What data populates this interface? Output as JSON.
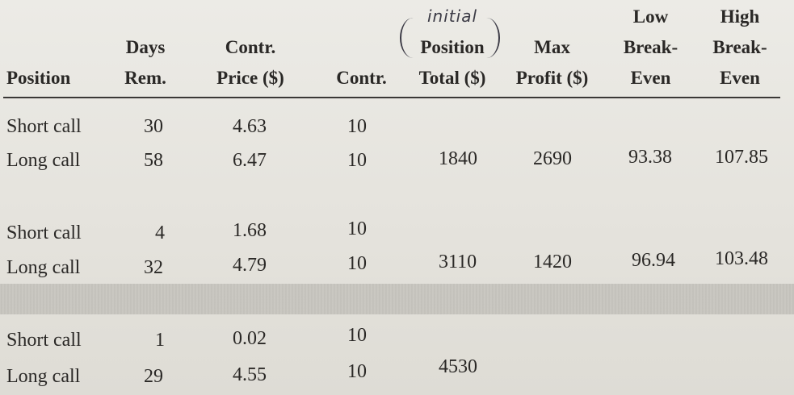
{
  "handwritten_note": "initial",
  "headers": {
    "position": "Position",
    "days_rem": [
      "Days",
      "Rem."
    ],
    "contr_price": [
      "Contr.",
      "Price ($)"
    ],
    "contr": "Contr.",
    "position_total": [
      "Position",
      "Total ($)"
    ],
    "max_profit": [
      "Max",
      "Profit ($)"
    ],
    "low_breakeven": [
      "Low",
      "Break-",
      "Even"
    ],
    "high_breakeven": [
      "High",
      "Break-",
      "Even"
    ]
  },
  "groups": [
    {
      "rows": [
        {
          "position": "Short call",
          "days": "30",
          "price": "4.63",
          "contr": "10"
        },
        {
          "position": "Long call",
          "days": "58",
          "price": "6.47",
          "contr": "10"
        }
      ],
      "total": "1840",
      "max_profit": "2690",
      "low_be": "93.38",
      "high_be": "107.85"
    },
    {
      "rows": [
        {
          "position": "Short call",
          "days": "4",
          "price": "1.68",
          "contr": "10"
        },
        {
          "position": "Long call",
          "days": "32",
          "price": "4.79",
          "contr": "10"
        }
      ],
      "total": "3110",
      "max_profit": "1420",
      "low_be": "96.94",
      "high_be": "103.48"
    },
    {
      "rows": [
        {
          "position": "Short call",
          "days": "1",
          "price": "0.02",
          "contr": "10"
        },
        {
          "position": "Long call",
          "days": "29",
          "price": "4.55",
          "contr": "10"
        }
      ],
      "total": "4530",
      "max_profit": "",
      "low_be": "",
      "high_be": ""
    }
  ]
}
